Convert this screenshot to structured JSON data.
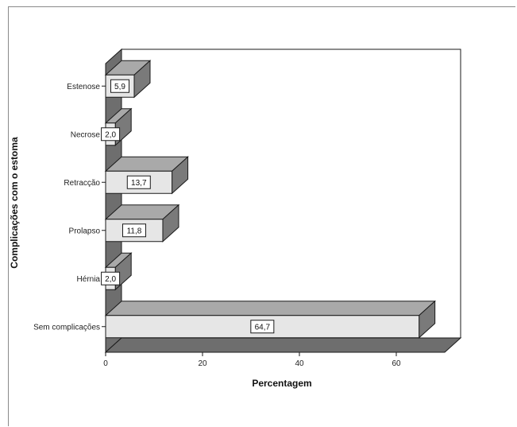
{
  "chart_data": {
    "type": "bar",
    "orientation": "horizontal",
    "style": "3d",
    "categories": [
      "Estenose",
      "Necrose",
      "Retracção",
      "Prolapso",
      "Hérnia",
      "Sem complicações"
    ],
    "values": [
      5.9,
      2.0,
      13.7,
      11.8,
      2.0,
      64.7
    ],
    "data_labels": [
      "5,9",
      "2,0",
      "13,7",
      "11,8",
      "2,0",
      "64,7"
    ],
    "xlabel": "Percentagem",
    "ylabel": "Complicações com o estoma",
    "xlim": [
      0,
      70
    ],
    "x_ticks": [
      0,
      20,
      40,
      60
    ],
    "x_tick_labels": [
      "0",
      "20",
      "40",
      "60"
    ],
    "grid": false,
    "legend": "none"
  },
  "colors": {
    "bar_front": "#e6e6e6",
    "bar_top": "#a9a9a9",
    "bar_side": "#7a7a7a",
    "wall": "#6e6e6e",
    "floor": "#6e6e6e",
    "back_wall": "#ffffff",
    "outline": "#1a1a1a"
  }
}
